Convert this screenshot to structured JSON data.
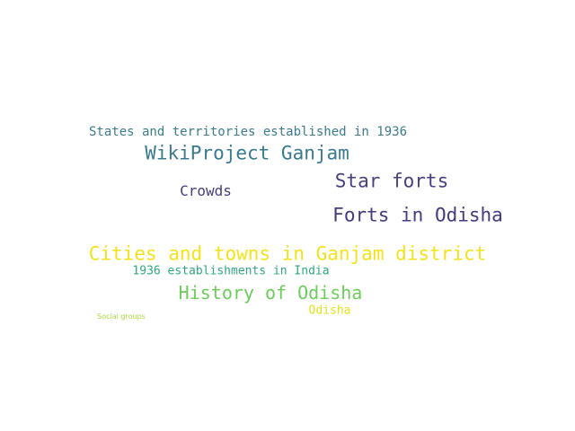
{
  "word_cloud": {
    "words": [
      {
        "text": "States and territories established in 1936",
        "color": "#3b7c8e"
      },
      {
        "text": "WikiProject Ganjam",
        "color": "#3a7a8e"
      },
      {
        "text": "Star forts",
        "color": "#4a3d82"
      },
      {
        "text": "Crowds",
        "color": "#463c7e"
      },
      {
        "text": "Forts in Odisha",
        "color": "#443a83"
      },
      {
        "text": "Cities and towns in Ganjam district",
        "color": "#f2e31c"
      },
      {
        "text": "1936 establishments in India",
        "color": "#2fa684"
      },
      {
        "text": "History of Odisha",
        "color": "#6ccd5a"
      },
      {
        "text": "Odisha",
        "color": "#e3e21a"
      },
      {
        "text": "Social groups",
        "color": "#a9dc3c"
      }
    ]
  }
}
